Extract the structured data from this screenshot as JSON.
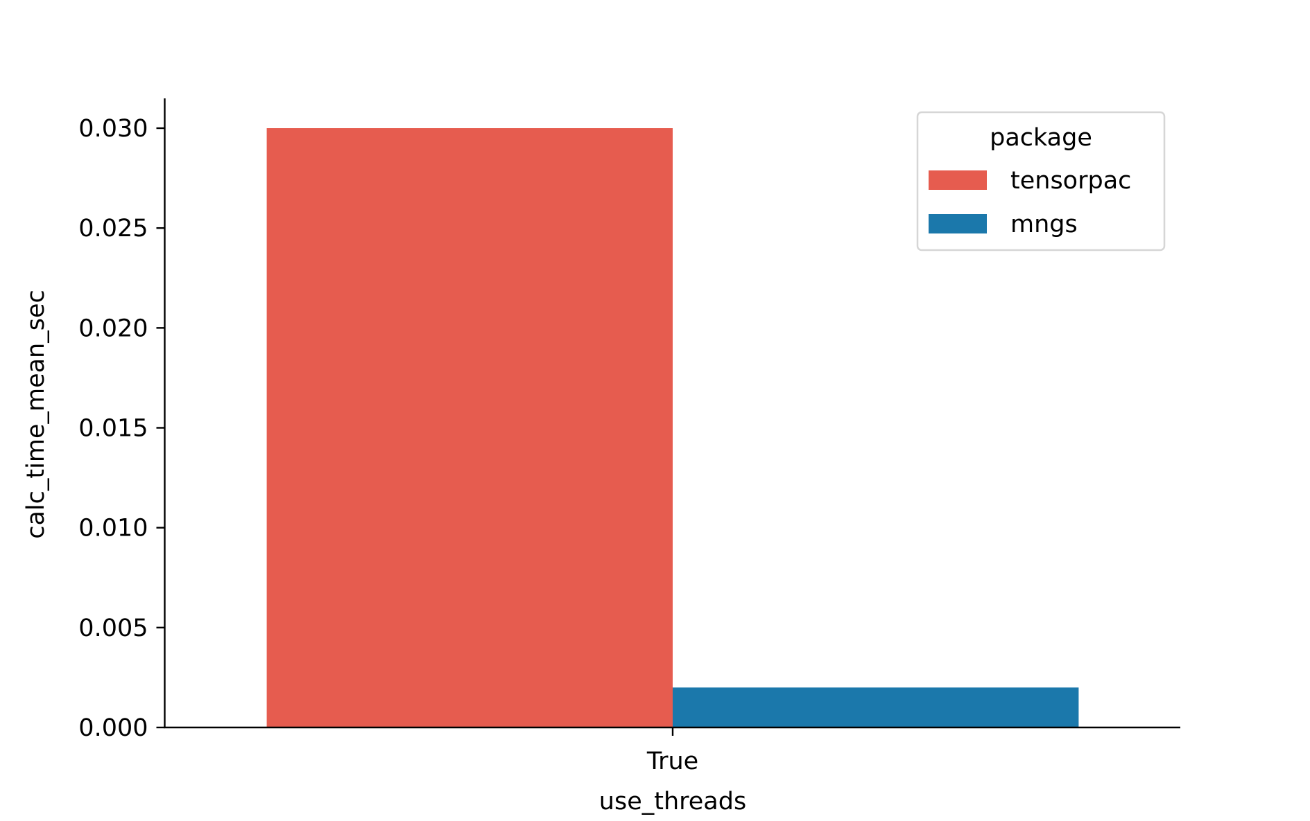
{
  "chart_data": {
    "type": "bar",
    "title": "",
    "xlabel": "use_threads",
    "ylabel": "calc_time_mean_sec",
    "categories": [
      "True"
    ],
    "series": [
      {
        "name": "tensorpac",
        "color": "#e65c4f",
        "values": [
          0.03
        ]
      },
      {
        "name": "mngs",
        "color": "#1b78ab",
        "values": [
          0.002
        ]
      }
    ],
    "ylim": [
      0.0,
      0.0315
    ],
    "yticks": [
      0.0,
      0.005,
      0.01,
      0.015,
      0.02,
      0.025,
      0.03
    ],
    "ytick_labels": [
      "0.000",
      "0.005",
      "0.010",
      "0.015",
      "0.020",
      "0.025",
      "0.030"
    ],
    "grid": false,
    "legend": {
      "title": "package",
      "placement": "top-right",
      "entries": [
        "tensorpac",
        "mngs"
      ]
    }
  }
}
